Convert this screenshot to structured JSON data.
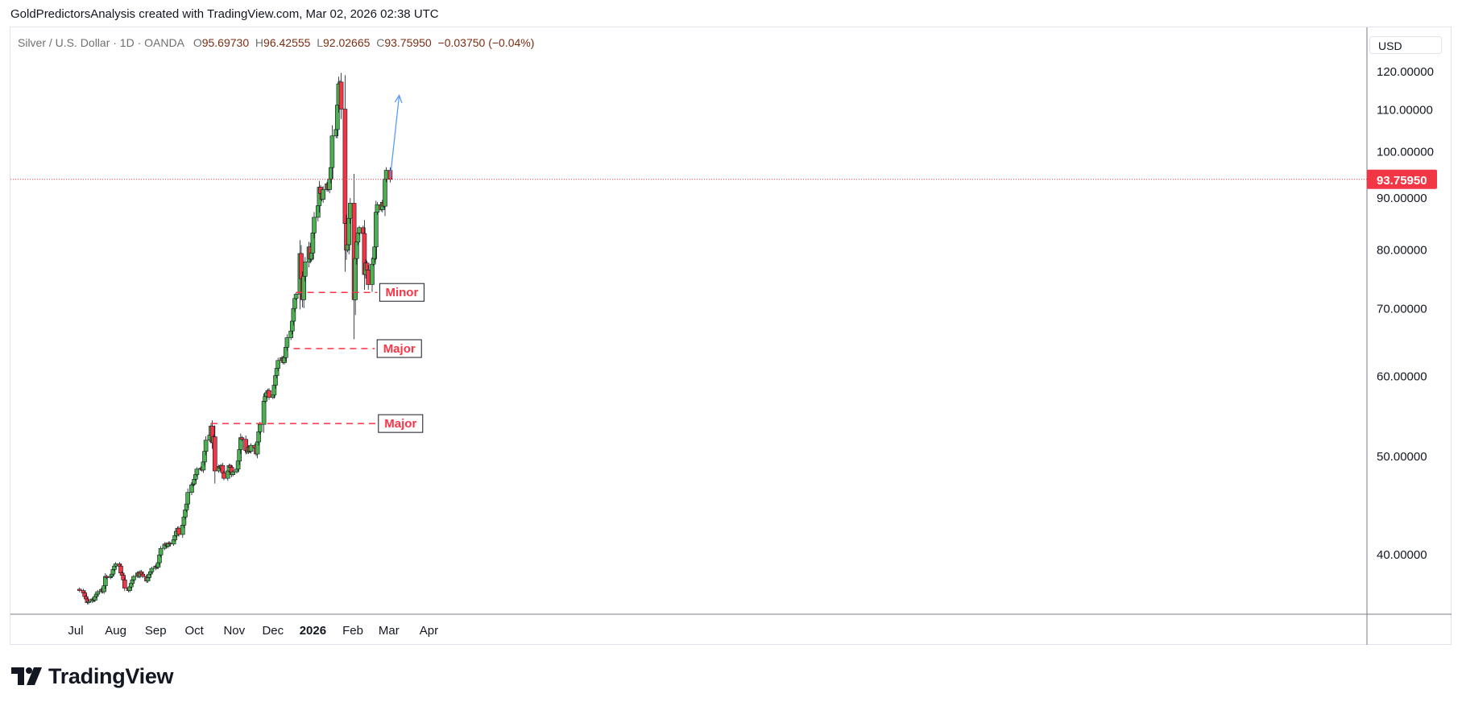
{
  "header": {
    "credit": "GoldPredictorsAnalysis created with TradingView.com, Mar 02, 2026 02:38 UTC"
  },
  "legend": {
    "symbol": "Silver / U.S. Dollar · 1D · OANDA",
    "open_label": "O",
    "open": "95.69730",
    "high_label": "H",
    "high": "96.42555",
    "low_label": "L",
    "low": "92.02665",
    "close_label": "C",
    "close": "93.75950",
    "change": "−0.03750 (−0.04%)"
  },
  "currency": "USD",
  "footer": {
    "brand": "TradingView"
  },
  "colors": {
    "up": "#4caf50",
    "down": "#f23645",
    "line": "#ff3346",
    "arrow": "#5b9cf6",
    "price_label_bg": "#f23645"
  },
  "chart_data": {
    "type": "candlestick",
    "symbol": "XAGUSD",
    "interval": "1D",
    "ylim": [
      30,
      125
    ],
    "y_ticks": [
      "120.00000",
      "110.00000",
      "100.00000",
      "90.00000",
      "80.00000",
      "70.00000",
      "60.00000",
      "50.00000",
      "40.00000"
    ],
    "x_ticks": [
      {
        "label": "Jul",
        "date": "2025-07-01",
        "bold": false
      },
      {
        "label": "Aug",
        "date": "2025-08-01",
        "bold": false
      },
      {
        "label": "Sep",
        "date": "2025-09-01",
        "bold": false
      },
      {
        "label": "Oct",
        "date": "2025-10-01",
        "bold": false
      },
      {
        "label": "Nov",
        "date": "2025-11-01",
        "bold": false
      },
      {
        "label": "Dec",
        "date": "2025-12-01",
        "bold": false
      },
      {
        "label": "2026",
        "date": "2026-01-01",
        "bold": true
      },
      {
        "label": "Feb",
        "date": "2026-02-01",
        "bold": false
      },
      {
        "label": "Mar",
        "date": "2026-03-01",
        "bold": false
      },
      {
        "label": "Apr",
        "date": "2026-04-01",
        "bold": false
      }
    ],
    "last_price": 93.7595,
    "last_price_label": "93.75950",
    "closes": [
      36.8,
      36.6,
      36.3,
      36.1,
      35.8,
      35.9,
      36.1,
      36.0,
      36.3,
      36.5,
      36.7,
      36.9,
      36.7,
      37.2,
      38.0,
      37.9,
      38.0,
      38.2,
      38.6,
      38.9,
      39.1,
      38.9,
      38.3,
      38.1,
      37.7,
      37.0,
      36.8,
      37.1,
      37.4,
      37.7,
      38.0,
      38.3,
      38.0,
      38.4,
      38.2,
      38.0,
      37.6,
      37.9,
      38.2,
      38.4,
      38.7,
      38.9,
      38.8,
      39.2,
      39.9,
      40.5,
      40.9,
      40.8,
      40.7,
      41.0,
      40.9,
      41.3,
      41.7,
      42.1,
      42.4,
      41.8,
      42.7,
      43.5,
      44.2,
      44.8,
      46.0,
      46.8,
      46.9,
      47.4,
      47.9,
      48.5,
      48.6,
      48.4,
      49.3,
      50.5,
      51.8,
      52.4,
      53.5,
      51.5,
      52.2,
      48.3,
      48.8,
      48.6,
      48.9,
      48.1,
      47.5,
      48.3,
      48.9,
      48.7,
      47.9,
      48.2,
      48.5,
      49.4,
      50.7,
      52.1,
      51.9,
      50.6,
      50.4,
      51.0,
      50.5,
      51.2,
      50.9,
      50.2,
      51.6,
      52.8,
      53.7,
      56.6,
      57.2,
      57.7,
      58.0,
      57.1,
      57.4,
      58.7,
      60.0,
      61.0,
      62.1,
      62.5,
      61.8,
      62.5,
      64.0,
      65.4,
      66.4,
      67.9,
      69.9,
      71.5,
      72.2,
      79.2,
      74.8,
      71.3,
      75.2,
      77.7,
      80.4,
      78.2,
      79.3,
      83.0,
      86.0,
      88.3,
      92.1,
      90.8,
      89.6,
      91.6,
      92.8,
      91.6,
      93.8,
      96.3,
      103.5,
      105.0,
      111.0,
      116.5,
      117.0,
      110.0,
      84.8,
      79.8,
      80.8,
      85.8,
      88.8,
      71.3,
      78.3,
      81.3,
      83.0,
      84.0,
      82.9,
      75.5,
      77.5,
      76.3,
      73.8,
      77.3,
      78.3,
      80.4,
      87.0,
      88.5,
      87.5,
      89.0,
      88.2,
      93.8,
      95.7,
      93.7595
    ],
    "annotations": [
      {
        "kind": "level",
        "label": "Minor",
        "price": 72.5,
        "from_date": "2025-12-19",
        "to_date": "2026-02-20"
      },
      {
        "kind": "level",
        "label": "Major",
        "price": 63.8,
        "from_date": "2025-12-17",
        "to_date": "2026-02-18"
      },
      {
        "kind": "level",
        "label": "Major",
        "price": 53.8,
        "from_date": "2025-10-14",
        "to_date": "2026-02-19"
      },
      {
        "kind": "arrow",
        "from_date": "2026-03-02",
        "from_price": 94.0,
        "to_date": "2026-03-09",
        "to_price": 113.5
      }
    ]
  }
}
